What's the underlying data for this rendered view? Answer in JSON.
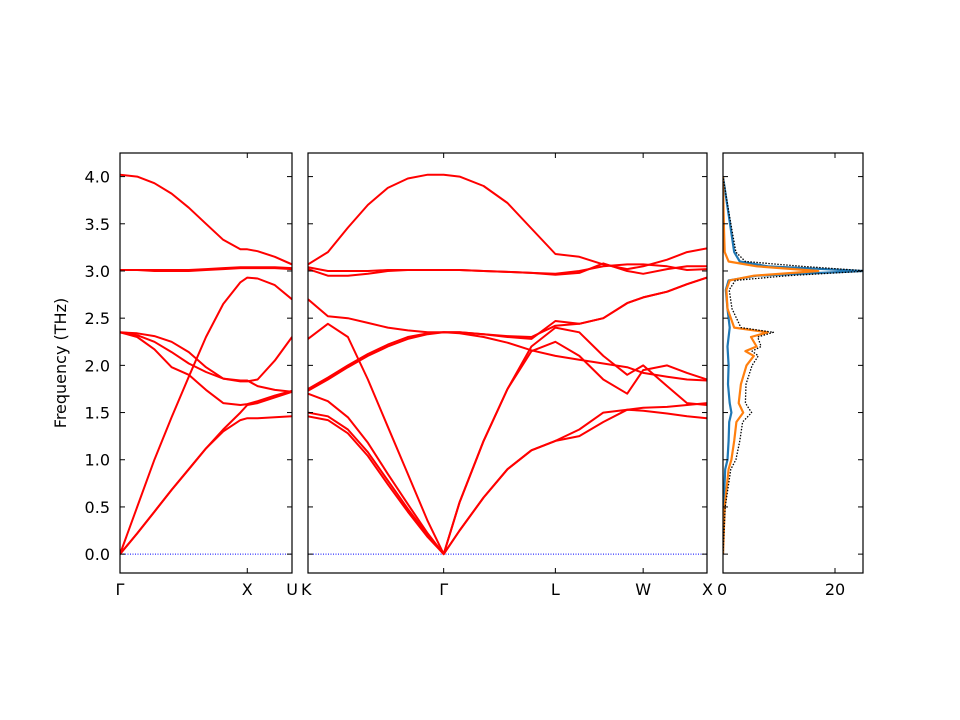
{
  "chart_data": {
    "type": "line",
    "ylabel": "Frequency (THz)",
    "ylim": [
      -0.2,
      4.25
    ],
    "yticks": [
      "0.0",
      "0.5",
      "1.0",
      "1.5",
      "2.0",
      "2.5",
      "3.0",
      "3.5",
      "4.0"
    ],
    "yticks_values": [
      0,
      0.5,
      1,
      1.5,
      2,
      2.5,
      3,
      3.5,
      4
    ],
    "band_color": "#ff0000",
    "zero_line_color": "#0000ff",
    "dos_colors": [
      "#1f77b4",
      "#ff7f0e",
      "#000000"
    ],
    "panels": [
      {
        "name": "panel-gamma-x-u",
        "xlim": [
          0,
          1
        ],
        "tick_labels": [
          "Γ",
          "X",
          "U"
        ],
        "tick_positions": [
          0,
          0.74,
          1
        ],
        "bands": [
          {
            "x": [
              0,
              0.1,
              0.2,
              0.3,
              0.4,
              0.5,
              0.6,
              0.7,
              0.74,
              0.8,
              0.9,
              1.0
            ],
            "y": [
              0,
              0.22,
              0.45,
              0.68,
              0.9,
              1.12,
              1.32,
              1.5,
              1.58,
              1.6,
              1.66,
              1.72
            ]
          },
          {
            "x": [
              0,
              0.1,
              0.2,
              0.3,
              0.4,
              0.5,
              0.6,
              0.7,
              0.74,
              0.8,
              0.9,
              1.0
            ],
            "y": [
              0,
              0.22,
              0.45,
              0.68,
              0.9,
              1.12,
              1.3,
              1.42,
              1.44,
              1.44,
              1.45,
              1.46
            ]
          },
          {
            "x": [
              0,
              0.1,
              0.2,
              0.3,
              0.4,
              0.5,
              0.6,
              0.7,
              0.74,
              0.8,
              0.9,
              1.0
            ],
            "y": [
              0,
              0.5,
              1.0,
              1.45,
              1.88,
              2.3,
              2.65,
              2.88,
              2.93,
              2.92,
              2.85,
              2.7
            ]
          },
          {
            "x": [
              0,
              0.1,
              0.2,
              0.3,
              0.4,
              0.5,
              0.6,
              0.7,
              0.74,
              0.8,
              0.9,
              1.0
            ],
            "y": [
              2.35,
              2.3,
              2.17,
              1.98,
              1.9,
              1.74,
              1.6,
              1.58,
              1.59,
              1.62,
              1.68,
              1.73
            ]
          },
          {
            "x": [
              0,
              0.1,
              0.2,
              0.3,
              0.4,
              0.5,
              0.6,
              0.7,
              0.74,
              0.8,
              0.9,
              1.0
            ],
            "y": [
              2.35,
              2.32,
              2.25,
              2.14,
              2.02,
              1.93,
              1.86,
              1.83,
              1.83,
              1.85,
              2.05,
              2.3
            ]
          },
          {
            "x": [
              0,
              0.1,
              0.2,
              0.3,
              0.4,
              0.5,
              0.6,
              0.7,
              0.74,
              0.8,
              0.9,
              1.0
            ],
            "y": [
              2.35,
              2.34,
              2.31,
              2.25,
              2.14,
              1.98,
              1.86,
              1.84,
              1.84,
              1.78,
              1.74,
              1.72
            ]
          },
          {
            "x": [
              0,
              0.1,
              0.2,
              0.3,
              0.4,
              0.5,
              0.6,
              0.7,
              0.74,
              0.8,
              0.9,
              1.0
            ],
            "y": [
              3.01,
              3.01,
              3.0,
              3.0,
              3.0,
              3.01,
              3.02,
              3.03,
              3.03,
              3.03,
              3.03,
              3.02
            ]
          },
          {
            "x": [
              0,
              0.1,
              0.2,
              0.3,
              0.4,
              0.5,
              0.6,
              0.7,
              0.74,
              0.8,
              0.9,
              1.0
            ],
            "y": [
              3.01,
              3.01,
              3.01,
              3.01,
              3.01,
              3.02,
              3.03,
              3.04,
              3.04,
              3.04,
              3.04,
              3.03
            ]
          },
          {
            "x": [
              0,
              0.1,
              0.2,
              0.3,
              0.4,
              0.5,
              0.6,
              0.7,
              0.74,
              0.8,
              0.9,
              1.0
            ],
            "y": [
              4.02,
              4.0,
              3.93,
              3.82,
              3.67,
              3.5,
              3.33,
              3.23,
              3.23,
              3.21,
              3.15,
              3.07
            ]
          }
        ]
      },
      {
        "name": "panel-k-gamma-l-w-x",
        "xlim": [
          0,
          1
        ],
        "tick_labels": [
          "K",
          "Γ",
          "L",
          "W",
          "X"
        ],
        "tick_positions": [
          0,
          0.34,
          0.62,
          0.84,
          1
        ],
        "bands": [
          {
            "x": [
              0,
              0.05,
              0.1,
              0.15,
              0.2,
              0.25,
              0.3,
              0.34,
              0.38,
              0.44,
              0.5,
              0.56,
              0.62,
              0.68,
              0.74,
              0.8,
              0.84,
              0.9,
              0.95,
              1.0
            ],
            "y": [
              1.46,
              1.42,
              1.28,
              1.04,
              0.74,
              0.45,
              0.18,
              0,
              0.25,
              0.6,
              0.9,
              1.1,
              1.2,
              1.32,
              1.5,
              1.53,
              1.52,
              1.49,
              1.46,
              1.44
            ]
          },
          {
            "x": [
              0,
              0.05,
              0.1,
              0.15,
              0.2,
              0.25,
              0.3,
              0.34,
              0.38,
              0.44,
              0.5,
              0.56,
              0.62,
              0.68,
              0.74,
              0.8,
              0.84,
              0.9,
              0.95,
              1.0
            ],
            "y": [
              1.5,
              1.46,
              1.32,
              1.08,
              0.78,
              0.48,
              0.2,
              0,
              0.25,
              0.6,
              0.9,
              1.1,
              1.2,
              1.25,
              1.4,
              1.53,
              1.55,
              1.56,
              1.58,
              1.6
            ]
          },
          {
            "x": [
              0,
              0.05,
              0.1,
              0.15,
              0.2,
              0.25,
              0.3,
              0.34,
              0.38,
              0.44,
              0.5,
              0.56,
              0.62,
              0.68,
              0.74,
              0.8,
              0.84,
              0.9,
              0.95,
              1.0
            ],
            "y": [
              1.7,
              1.62,
              1.45,
              1.18,
              0.85,
              0.53,
              0.22,
              0,
              0.55,
              1.2,
              1.75,
              2.15,
              2.25,
              2.1,
              1.85,
              1.7,
              1.95,
              2.0,
              1.92,
              1.85
            ]
          },
          {
            "x": [
              0,
              0.05,
              0.1,
              0.15,
              0.2,
              0.25,
              0.3,
              0.34,
              0.38,
              0.44,
              0.5,
              0.56,
              0.62,
              0.68,
              0.74,
              0.8,
              0.84,
              0.9,
              0.95,
              1.0
            ],
            "y": [
              2.28,
              2.44,
              2.3,
              1.85,
              1.35,
              0.85,
              0.35,
              0,
              0.55,
              1.2,
              1.75,
              2.2,
              2.4,
              2.35,
              2.1,
              1.9,
              2.0,
              1.78,
              1.6,
              1.58
            ]
          },
          {
            "x": [
              0,
              0.05,
              0.1,
              0.15,
              0.2,
              0.25,
              0.3,
              0.34,
              0.38,
              0.44,
              0.5,
              0.56,
              0.62,
              0.68,
              0.74,
              0.8,
              0.84,
              0.9,
              0.95,
              1.0
            ],
            "y": [
              1.73,
              1.85,
              1.98,
              2.1,
              2.2,
              2.28,
              2.33,
              2.35,
              2.34,
              2.3,
              2.24,
              2.16,
              2.1,
              2.06,
              2.02,
              1.98,
              1.92,
              1.88,
              1.85,
              1.84
            ]
          },
          {
            "x": [
              0,
              0.05,
              0.1,
              0.15,
              0.2,
              0.25,
              0.3,
              0.34,
              0.38,
              0.44,
              0.5,
              0.56,
              0.62,
              0.68,
              0.74,
              0.8,
              0.84,
              0.9,
              0.95,
              1.0
            ],
            "y": [
              1.75,
              1.87,
              2.0,
              2.12,
              2.22,
              2.3,
              2.34,
              2.35,
              2.35,
              2.33,
              2.31,
              2.3,
              2.42,
              2.44,
              2.5,
              2.66,
              2.72,
              2.78,
              2.86,
              2.93
            ]
          },
          {
            "x": [
              0,
              0.05,
              0.1,
              0.15,
              0.2,
              0.25,
              0.3,
              0.34,
              0.38,
              0.44,
              0.5,
              0.56,
              0.62,
              0.68,
              0.74,
              0.8,
              0.84,
              0.9,
              0.95,
              1.0
            ],
            "y": [
              2.7,
              2.52,
              2.5,
              2.45,
              2.4,
              2.37,
              2.35,
              2.35,
              2.35,
              2.33,
              2.3,
              2.28,
              2.47,
              2.44,
              2.5,
              2.66,
              2.72,
              2.78,
              2.86,
              2.93
            ]
          },
          {
            "x": [
              0,
              0.05,
              0.1,
              0.15,
              0.2,
              0.25,
              0.3,
              0.34,
              0.38,
              0.44,
              0.5,
              0.56,
              0.62,
              0.68,
              0.74,
              0.8,
              0.84,
              0.9,
              0.95,
              1.0
            ],
            "y": [
              3.02,
              2.95,
              2.95,
              2.97,
              3.0,
              3.01,
              3.01,
              3.01,
              3.01,
              3.0,
              2.99,
              2.98,
              2.97,
              3.0,
              3.05,
              3.07,
              3.07,
              3.05,
              3.01,
              3.02
            ]
          },
          {
            "x": [
              0,
              0.05,
              0.1,
              0.15,
              0.2,
              0.25,
              0.3,
              0.34,
              0.38,
              0.44,
              0.5,
              0.56,
              0.62,
              0.68,
              0.74,
              0.8,
              0.84,
              0.9,
              0.95,
              1.0
            ],
            "y": [
              3.04,
              3.0,
              3.0,
              3.0,
              3.01,
              3.01,
              3.01,
              3.01,
              3.01,
              3.0,
              2.99,
              2.98,
              2.96,
              2.98,
              3.08,
              3.0,
              2.97,
              3.02,
              3.05,
              3.05
            ]
          },
          {
            "x": [
              0,
              0.05,
              0.1,
              0.15,
              0.2,
              0.25,
              0.3,
              0.34,
              0.38,
              0.44,
              0.5,
              0.56,
              0.62,
              0.68,
              0.74,
              0.8,
              0.84,
              0.9,
              0.95,
              1.0
            ],
            "y": [
              3.07,
              3.2,
              3.46,
              3.7,
              3.88,
              3.98,
              4.02,
              4.02,
              4.0,
              3.9,
              3.72,
              3.45,
              3.18,
              3.15,
              3.07,
              3.02,
              3.05,
              3.12,
              3.2,
              3.24
            ]
          }
        ]
      },
      {
        "name": "panel-dos",
        "xlim": [
          0,
          25
        ],
        "tick_labels": [
          "0",
          "20"
        ],
        "tick_positions": [
          0,
          20
        ],
        "dos_series": [
          {
            "y": [
              0.0,
              0.5,
              0.9,
              1.0,
              1.2,
              1.4,
              1.5,
              1.6,
              1.8,
              2.0,
              2.2,
              2.4,
              2.6,
              2.8,
              2.9,
              2.95,
              3.0,
              3.05,
              3.1,
              3.2,
              3.4,
              3.6,
              3.8,
              4.0
            ],
            "v": [
              0,
              0.1,
              0.4,
              0.8,
              1.0,
              1.1,
              1.5,
              1.2,
              0.9,
              1.0,
              0.8,
              1.2,
              0.8,
              0.5,
              1.0,
              6,
              25,
              8,
              3,
              2,
              1.5,
              1.0,
              0.5,
              0
            ]
          },
          {
            "y": [
              0.0,
              0.5,
              0.9,
              1.0,
              1.2,
              1.4,
              1.5,
              1.6,
              1.8,
              2.0,
              2.1,
              2.15,
              2.2,
              2.3,
              2.35,
              2.4,
              2.6,
              2.8,
              2.9,
              2.95,
              3.0,
              3.05,
              3.1,
              3.2,
              3.4,
              3.6,
              3.8,
              4.0
            ],
            "v": [
              0,
              0.3,
              1.0,
              1.5,
              2.0,
              2.4,
              3.6,
              2.8,
              3.2,
              4.2,
              5.5,
              4.0,
              6.0,
              5.0,
              8.0,
              2.0,
              0.8,
              0.6,
              1.2,
              5.5,
              17,
              6.0,
              1.0,
              0.3,
              0.2,
              0.1,
              0.05,
              0
            ]
          },
          {
            "y": [
              0.0,
              0.5,
              0.9,
              1.0,
              1.2,
              1.4,
              1.5,
              1.6,
              1.8,
              2.0,
              2.1,
              2.15,
              2.2,
              2.3,
              2.35,
              2.4,
              2.6,
              2.8,
              2.9,
              2.95,
              3.0,
              3.05,
              3.1,
              3.2,
              3.4,
              3.6,
              3.8,
              4.0
            ],
            "v": [
              0,
              0.4,
              1.4,
              2.3,
              3.0,
              3.5,
              5.1,
              4.0,
              4.1,
              5.2,
              6.3,
              5.2,
              6.8,
              6.2,
              9.0,
              3.2,
              1.6,
              1.1,
              2.2,
              11.5,
              26,
              14,
              4.0,
              2.3,
              1.7,
              1.1,
              0.55,
              0
            ]
          }
        ]
      }
    ]
  }
}
